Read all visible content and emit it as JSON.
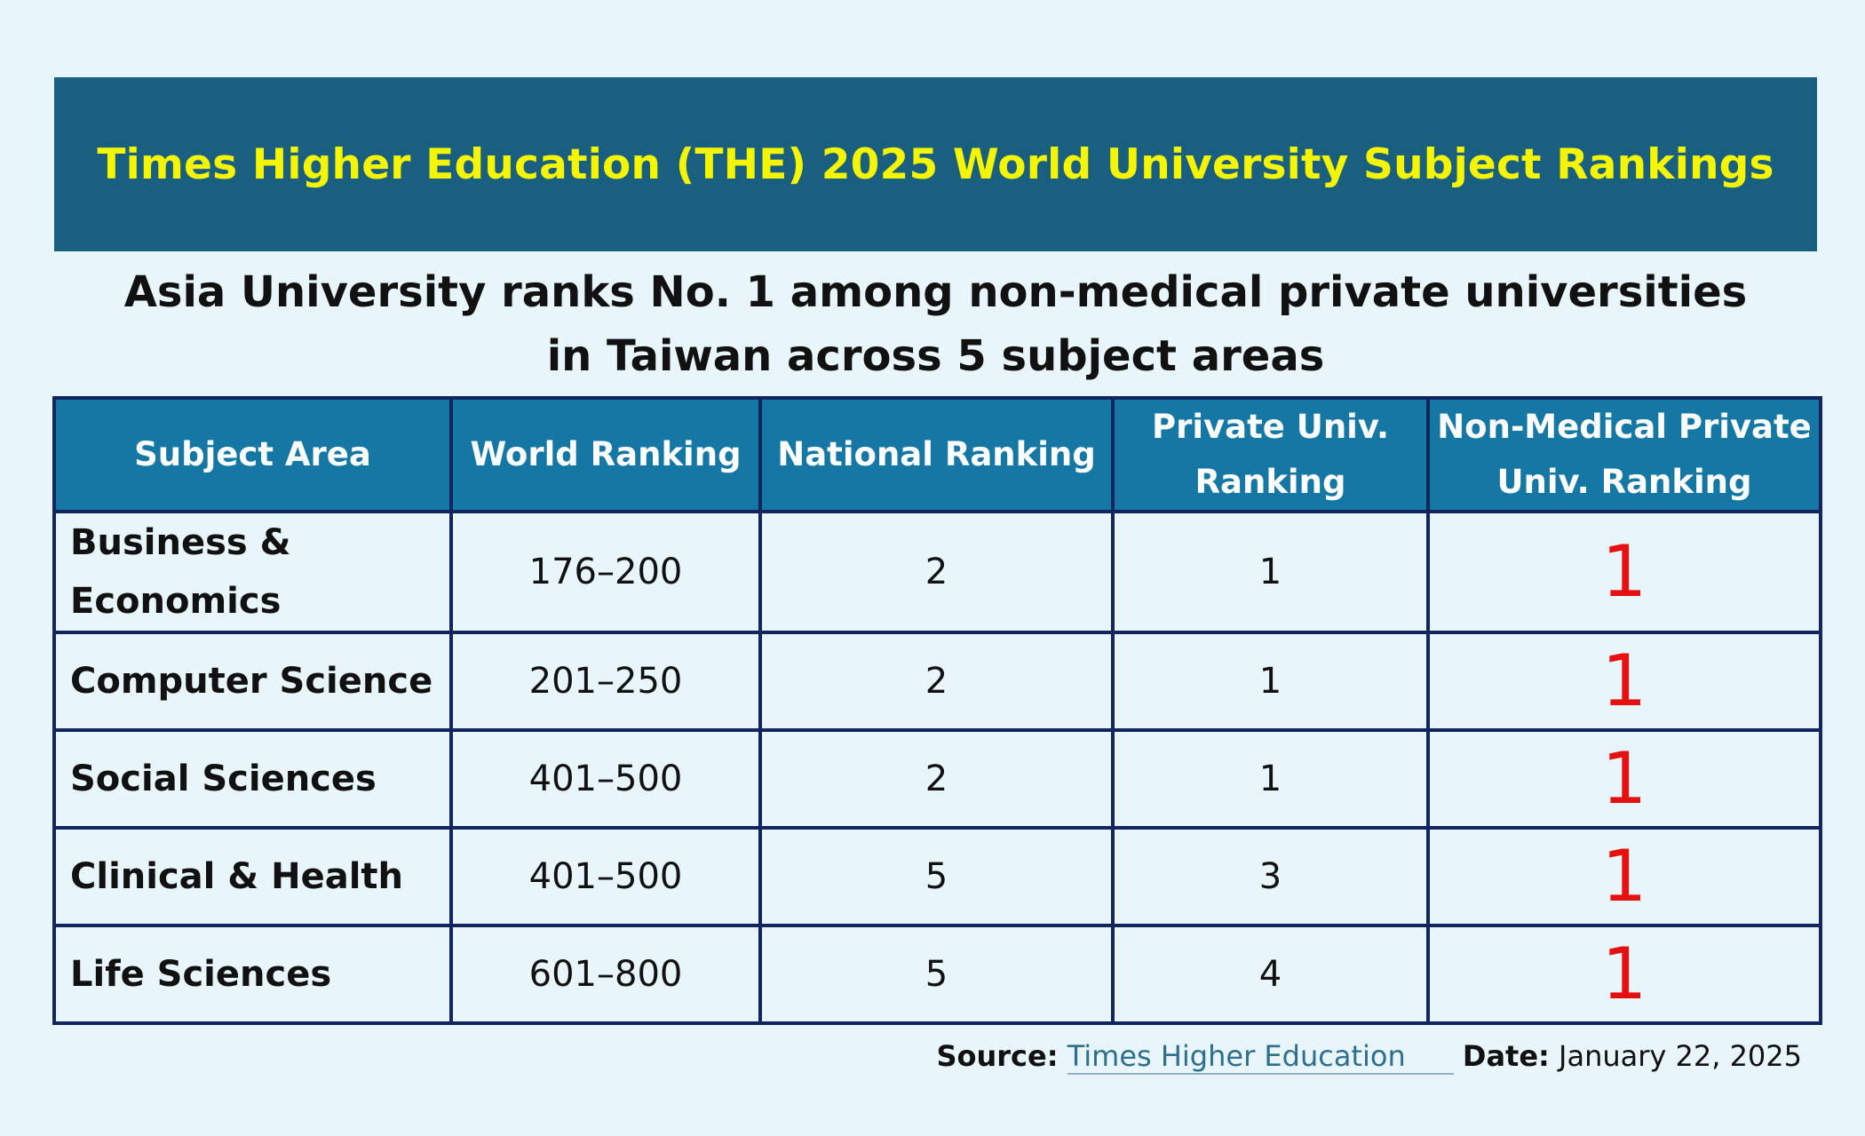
{
  "banner": {
    "title": "Times Higher Education (THE) 2025 World University Subject Rankings"
  },
  "subtitle": {
    "line1": "Asia University ranks No. 1 among non-medical private universities",
    "line2": "in Taiwan across 5 subject areas"
  },
  "table": {
    "headers": [
      {
        "line1": "Subject Area",
        "line2": ""
      },
      {
        "line1": "World Ranking",
        "line2": ""
      },
      {
        "line1": "National Ranking",
        "line2": ""
      },
      {
        "line1": "Private Univ.",
        "line2": "Ranking"
      },
      {
        "line1": "Non-Medical Private",
        "line2": "Univ. Ranking"
      }
    ],
    "rows": [
      {
        "subject_line1": "Business &",
        "subject_line2": "Economics",
        "world": "176–200",
        "national": "2",
        "private": "1",
        "non_medical_private": "1"
      },
      {
        "subject_line1": "Computer Science",
        "subject_line2": "",
        "world": "201–250",
        "national": "2",
        "private": "1",
        "non_medical_private": "1"
      },
      {
        "subject_line1": "Social Sciences",
        "subject_line2": "",
        "world": "401–500",
        "national": "2",
        "private": "1",
        "non_medical_private": "1"
      },
      {
        "subject_line1": "Clinical & Health",
        "subject_line2": "",
        "world": "401–500",
        "national": "5",
        "private": "3",
        "non_medical_private": "1"
      },
      {
        "subject_line1": "Life Sciences",
        "subject_line2": "",
        "world": "601–800",
        "national": "5",
        "private": "4",
        "non_medical_private": "1"
      }
    ]
  },
  "footer": {
    "source_label": "Source:",
    "source_value": "Times Higher Education",
    "date_label": "Date:",
    "date_value": "January 22, 2025"
  },
  "colors": {
    "background": "#e8f6fb",
    "banner": "#185f80",
    "banner_text": "#f5f500",
    "header": "#1577a3",
    "border": "#13255e",
    "highlight": "#e51010"
  }
}
